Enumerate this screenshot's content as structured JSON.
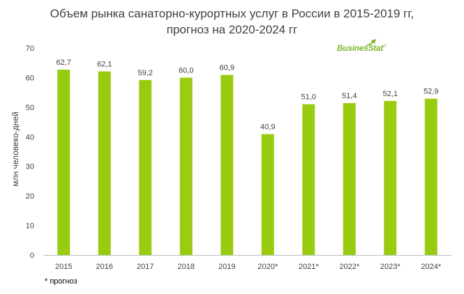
{
  "title_line1": "Объем рынка санаторно-курортных услуг в России в 2015-2019 гг,",
  "title_line2": "прогноз на 2020-2024 гг",
  "logo": "BusinesStat",
  "footnote": "* прогноз",
  "colors": {
    "bar": "#99cc11",
    "text": "#404040",
    "axis": "#bfbfbf"
  },
  "chart_data": {
    "type": "bar",
    "categories": [
      "2015",
      "2016",
      "2017",
      "2018",
      "2019",
      "2020*",
      "2021*",
      "2022*",
      "2023*",
      "2024*"
    ],
    "values": [
      62.7,
      62.1,
      59.2,
      60.0,
      60.9,
      40.9,
      51.0,
      51.4,
      52.1,
      52.9
    ],
    "value_labels": [
      "62,7",
      "62,1",
      "59,2",
      "60,0",
      "60,9",
      "40,9",
      "51,0",
      "51,4",
      "52,1",
      "52,9"
    ],
    "ylabel": "млн человеко-дней",
    "ylim": [
      0,
      70
    ],
    "yticks": [
      "0",
      "10",
      "20",
      "30",
      "40",
      "50",
      "60",
      "70"
    ],
    "grid": false,
    "legend": "none"
  }
}
